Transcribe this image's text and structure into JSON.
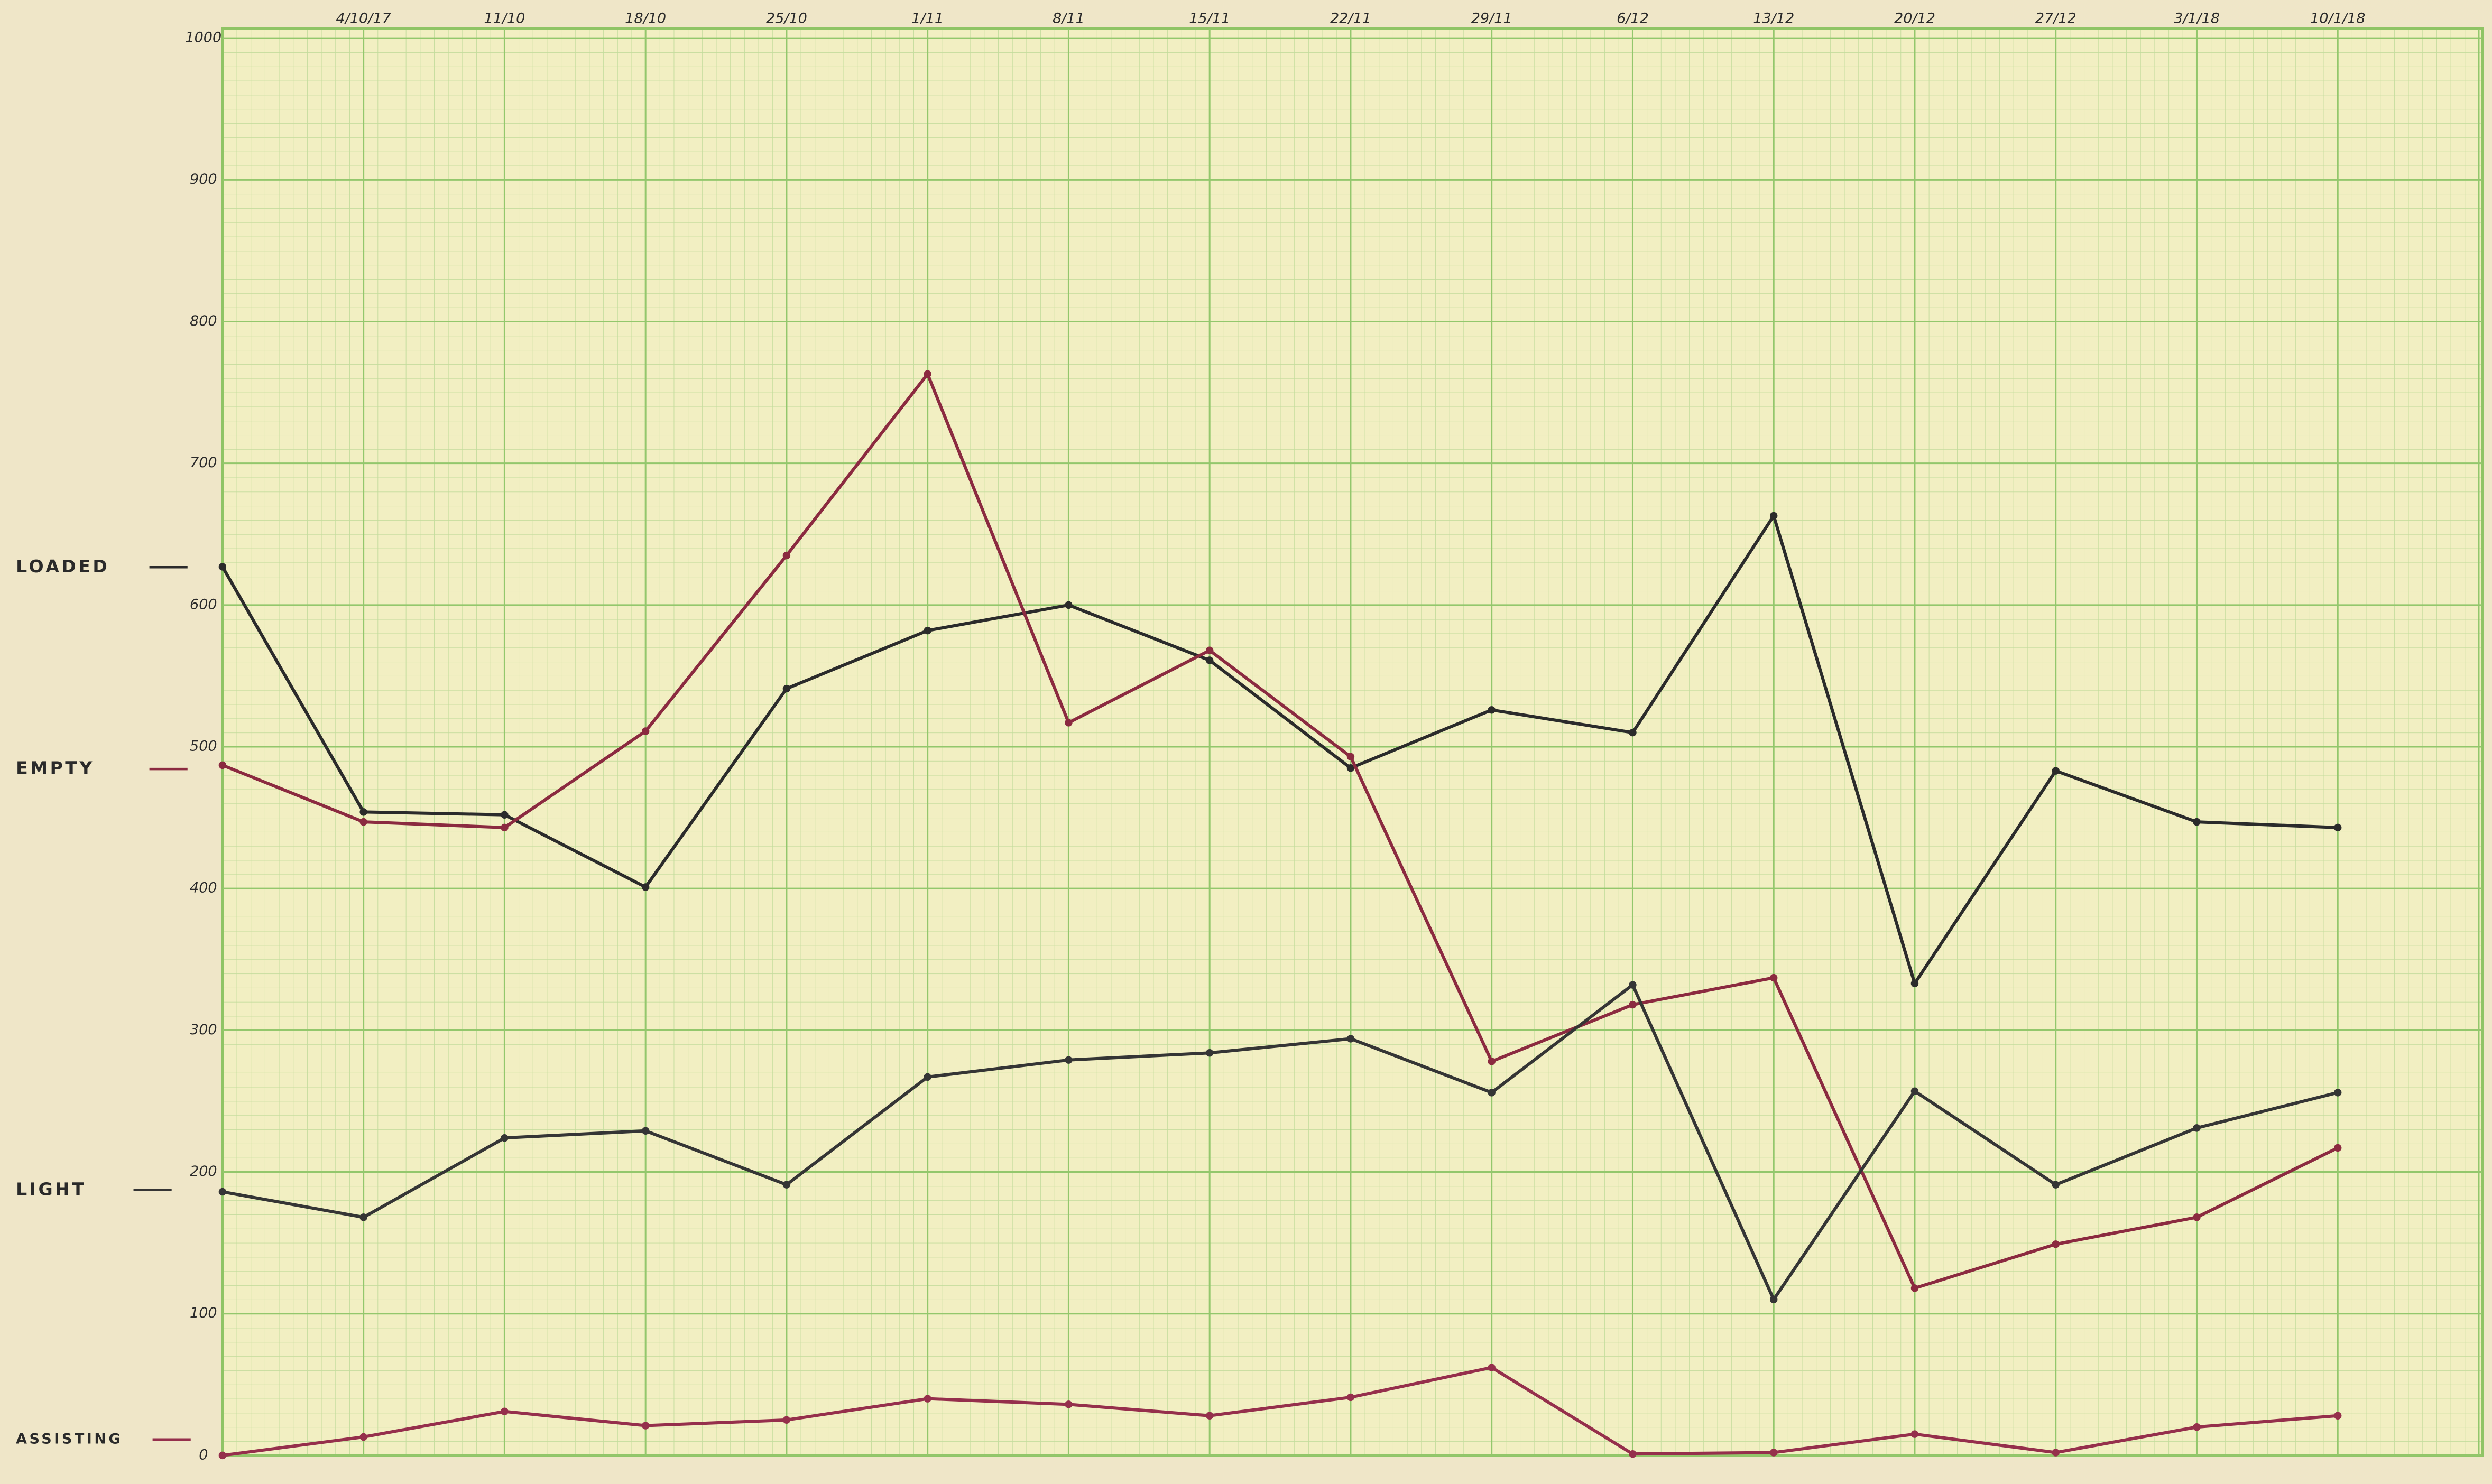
{
  "chart_data": {
    "type": "line",
    "categories": [
      null,
      "4/10/17",
      "11/10",
      "18/10",
      "25/10",
      "1/11",
      "8/11",
      "15/11",
      "22/11",
      "29/11",
      "6/12",
      "13/12",
      "20/12",
      "27/12",
      "3/1/18",
      "10/1/18"
    ],
    "ylim": [
      0,
      1000
    ],
    "yticks": [
      0,
      100,
      200,
      300,
      400,
      500,
      600,
      700,
      800,
      900,
      1000
    ],
    "grid": true,
    "series": [
      {
        "name": "LOADED",
        "color": "#2b2b2b",
        "values": [
          627,
          454,
          452,
          401,
          541,
          582,
          600,
          561,
          485,
          526,
          510,
          663,
          333,
          483,
          447,
          443
        ]
      },
      {
        "name": "EMPTY",
        "color": "#8b2a40",
        "values": [
          487,
          447,
          443,
          511,
          635,
          763,
          517,
          568,
          493,
          278,
          318,
          337,
          118,
          149,
          168,
          217
        ]
      },
      {
        "name": "LIGHT",
        "color": "#353535",
        "values": [
          186,
          168,
          224,
          229,
          191,
          267,
          279,
          284,
          294,
          256,
          332,
          110,
          257,
          191,
          231,
          256
        ]
      },
      {
        "name": "ASSISTING",
        "color": "#952f4c",
        "values": [
          0,
          13,
          31,
          21,
          25,
          40,
          36,
          28,
          41,
          62,
          1,
          2,
          15,
          2,
          20,
          28
        ]
      }
    ]
  }
}
